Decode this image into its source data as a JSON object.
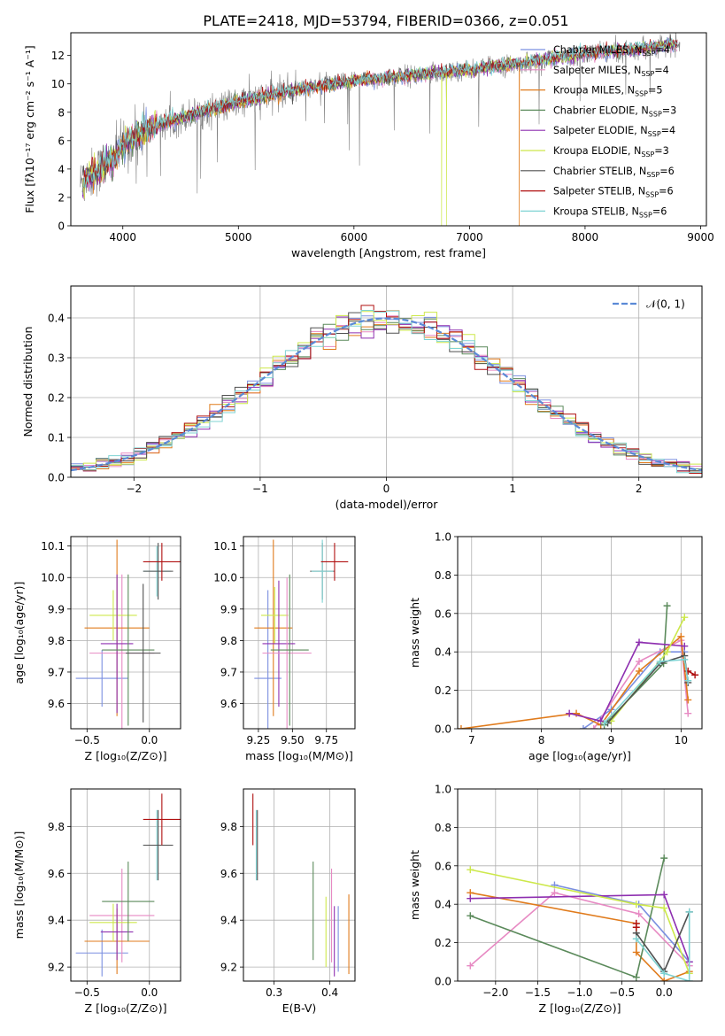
{
  "title": "PLATE=2418, MJD=53794, FIBERID=0366, z=0.051",
  "colors": {
    "chabrier_miles": "#7b8fe0",
    "salpeter_miles": "#e78ac3",
    "kroupa_miles": "#e07b1c",
    "chabrier_elodie": "#5b8a5b",
    "salpeter_elodie": "#8e2fb0",
    "kroupa_elodie": "#cde84b",
    "chabrier_stelib": "#505050",
    "salpeter_stelib": "#b01010",
    "kroupa_stelib": "#7fd3d3",
    "data": "#808080",
    "normal": "#5b8ad6"
  },
  "chart_data": [
    {
      "id": "spectrum",
      "type": "line",
      "xlabel": "wavelength [Angstrom, rest frame]",
      "ylabel": "Flux [fλ10⁻¹⁷ erg cm⁻² s⁻¹ A⁻¹]",
      "xlim": [
        3550,
        9050
      ],
      "ylim": [
        0,
        13.6
      ],
      "xticks": [
        4000,
        5000,
        6000,
        7000,
        8000,
        9000
      ],
      "yticks": [
        0,
        2,
        4,
        6,
        8,
        10,
        12
      ],
      "legend_loc": "top-right",
      "legend": [
        {
          "name": "Chabrier MILES, N_SSP=4",
          "main": "Chabrier MILES, N",
          "sub": "SSP",
          "tail": "=4",
          "color": "#7b8fe0"
        },
        {
          "name": "Salpeter MILES, N_SSP=4",
          "main": "Salpeter MILES, N",
          "sub": "SSP",
          "tail": "=4",
          "color": "#e78ac3"
        },
        {
          "name": "Kroupa MILES, N_SSP=5",
          "main": "Kroupa MILES, N",
          "sub": "SSP",
          "tail": "=5",
          "color": "#e07b1c"
        },
        {
          "name": "Chabrier ELODIE, N_SSP=3",
          "main": "Chabrier ELODIE, N",
          "sub": "SSP",
          "tail": "=3",
          "color": "#5b8a5b"
        },
        {
          "name": "Salpeter ELODIE, N_SSP=4",
          "main": "Salpeter ELODIE, N",
          "sub": "SSP",
          "tail": "=4",
          "color": "#8e2fb0"
        },
        {
          "name": "Kroupa ELODIE, N_SSP=3",
          "main": "Kroupa ELODIE, N",
          "sub": "SSP",
          "tail": "=3",
          "color": "#cde84b"
        },
        {
          "name": "Chabrier STELIB, N_SSP=6",
          "main": "Chabrier STELIB, N",
          "sub": "SSP",
          "tail": "=6",
          "color": "#505050"
        },
        {
          "name": "Salpeter STELIB, N_SSP=6",
          "main": "Salpeter STELIB, N",
          "sub": "SSP",
          "tail": "=6",
          "color": "#b01010"
        },
        {
          "name": "Kroupa STELIB, N_SSP=6",
          "main": "Kroupa STELIB, N",
          "sub": "SSP",
          "tail": "=6",
          "color": "#7fd3d3"
        }
      ],
      "continuum": {
        "x": [
          3650,
          3700,
          3800,
          3900,
          4000,
          4200,
          4500,
          5000,
          5500,
          6000,
          6500,
          7000,
          7500,
          8000,
          8500,
          8800
        ],
        "y": [
          3.0,
          3.5,
          4.0,
          4.6,
          5.6,
          6.8,
          7.6,
          8.7,
          9.6,
          10.2,
          10.6,
          11.0,
          11.5,
          12.1,
          12.5,
          12.8
        ]
      },
      "dropouts": [
        {
          "series": "kroupa_miles",
          "x": 7430
        },
        {
          "series": "kroupa_elodie",
          "x": 6760
        },
        {
          "series": "kroupa_elodie",
          "x": 6800
        }
      ],
      "model_range": [
        3650,
        8800
      ]
    },
    {
      "id": "residuals",
      "type": "step",
      "xlabel": "(data-model)/error",
      "ylabel": "Normed distribution",
      "xlim": [
        -2.5,
        2.5
      ],
      "ylim": [
        0,
        0.48
      ],
      "xticks": [
        -2,
        -1,
        0,
        1,
        2
      ],
      "xtick_labels": [
        "−2",
        "−1",
        "0",
        "1",
        "2"
      ],
      "yticks": [
        0.0,
        0.1,
        0.2,
        0.3,
        0.4
      ],
      "ytick_labels": [
        "0.0",
        "0.1",
        "0.2",
        "0.3",
        "0.4"
      ],
      "grid": true,
      "legend_loc": "top-right",
      "normal_label": "𝒩(0, 1)",
      "bin_width": 0.1
    },
    {
      "id": "age_vs_Z",
      "type": "errorbar",
      "xlabel": "Z [log₁₀(Z/Z⊙)]",
      "ylabel": "age  [log₁₀(age/yr)]",
      "xlim": [
        -0.63,
        0.25
      ],
      "ylim": [
        9.52,
        10.13
      ],
      "xticks": [
        -0.5,
        0.0
      ],
      "xtick_labels": [
        "−0.5",
        "0.0"
      ],
      "yticks": [
        9.6,
        9.7,
        9.8,
        9.9,
        10.0,
        10.1
      ],
      "ytick_labels": [
        "9.6",
        "9.7",
        "9.8",
        "9.9",
        "10.0",
        "10.1"
      ],
      "points": [
        {
          "s": "chabrier_miles",
          "x": -0.38,
          "xe": 0.21,
          "y": 9.68,
          "ye": 0.09
        },
        {
          "s": "salpeter_miles",
          "x": -0.22,
          "xe": 0.26,
          "y": 9.76,
          "ye": 0.25
        },
        {
          "s": "kroupa_miles",
          "x": -0.26,
          "xe": 0.26,
          "y": 9.84,
          "ye": 0.28
        },
        {
          "s": "kroupa_elodie",
          "x": -0.29,
          "xe": 0.19,
          "y": 9.88,
          "ye": 0.08
        },
        {
          "s": "salpeter_elodie",
          "x": -0.26,
          "xe": 0.13,
          "y": 9.79,
          "ye": 0.22
        },
        {
          "s": "chabrier_elodie",
          "x": -0.17,
          "xe": 0.21,
          "y": 9.77,
          "ye": 0.24
        },
        {
          "s": "chabrier_stelib",
          "x": -0.05,
          "xe": 0.14,
          "y": 9.76,
          "ye": 0.22
        },
        {
          "s": "kroupa_stelib",
          "x": 0.06,
          "xe": 0.11,
          "y": 10.02,
          "ye": 0.08
        },
        {
          "s": "chabrier_stelib",
          "x": 0.07,
          "xe": 0.12,
          "y": 10.02,
          "ye": 0.09
        },
        {
          "s": "salpeter_stelib",
          "x": 0.1,
          "xe": 0.15,
          "y": 10.05,
          "ye": 0.06
        }
      ]
    },
    {
      "id": "age_vs_mass",
      "type": "errorbar",
      "xlabel": "mass [log₁₀(M/M⊙)]",
      "xlim": [
        9.14,
        9.96
      ],
      "ylim": [
        9.52,
        10.13
      ],
      "xticks": [
        9.25,
        9.5,
        9.75
      ],
      "xtick_labels": [
        "9.25",
        "9.50",
        "9.75"
      ],
      "yticks": [
        9.6,
        9.7,
        9.8,
        9.9,
        10.0,
        10.1
      ],
      "ytick_labels": [
        "9.6",
        "9.7",
        "9.8",
        "9.9",
        "10.0",
        "10.1"
      ],
      "points": [
        {
          "s": "chabrier_miles",
          "x": 9.32,
          "xe": 0.1,
          "y": 9.68,
          "ye": 0.28
        },
        {
          "s": "kroupa_miles",
          "x": 9.36,
          "xe": 0.14,
          "y": 9.84,
          "ye": 0.28
        },
        {
          "s": "kroupa_elodie",
          "x": 9.37,
          "xe": 0.1,
          "y": 9.88,
          "ye": 0.09
        },
        {
          "s": "salpeter_elodie",
          "x": 9.4,
          "xe": 0.12,
          "y": 9.79,
          "ye": 0.2
        },
        {
          "s": "salpeter_miles",
          "x": 9.46,
          "xe": 0.18,
          "y": 9.76,
          "ye": 0.24
        },
        {
          "s": "chabrier_elodie",
          "x": 9.48,
          "xe": 0.14,
          "y": 9.77,
          "ye": 0.24
        },
        {
          "s": "chabrier_stelib",
          "x": 9.72,
          "xe": 0.09,
          "y": 10.02,
          "ye": 0.09
        },
        {
          "s": "kroupa_stelib",
          "x": 9.72,
          "xe": 0.08,
          "y": 10.02,
          "ye": 0.1
        },
        {
          "s": "salpeter_stelib",
          "x": 9.81,
          "xe": 0.1,
          "y": 10.05,
          "ye": 0.06
        }
      ]
    },
    {
      "id": "weight_vs_age",
      "type": "line",
      "xlabel": "age  [log₁₀(age/yr)]",
      "ylabel": "mass weight",
      "xlim": [
        6.8,
        10.3
      ],
      "ylim": [
        0.0,
        1.0
      ],
      "xticks": [
        7,
        8,
        9,
        10
      ],
      "xtick_labels": [
        "7",
        "8",
        "9",
        "10"
      ],
      "yticks": [
        0.0,
        0.2,
        0.4,
        0.6,
        0.8,
        1.0
      ],
      "ytick_labels": [
        "0.0",
        "0.2",
        "0.4",
        "0.6",
        "0.8",
        "1.0"
      ],
      "grid": true,
      "series": [
        {
          "s": "chabrier_miles",
          "x": [
            8.6,
            9.0,
            9.7,
            10.05
          ],
          "y": [
            0.0,
            0.1,
            0.4,
            0.4
          ]
        },
        {
          "s": "salpeter_miles",
          "x": [
            8.75,
            9.4,
            10.0,
            10.1
          ],
          "y": [
            0.0,
            0.35,
            0.46,
            0.08
          ]
        },
        {
          "s": "kroupa_miles",
          "x": [
            6.85,
            8.5,
            8.85,
            9.4,
            10.0,
            10.1
          ],
          "y": [
            0.0,
            0.08,
            0.02,
            0.3,
            0.48,
            0.15
          ]
        },
        {
          "s": "chabrier_elodie",
          "x": [
            8.9,
            9.75,
            9.8
          ],
          "y": [
            0.02,
            0.34,
            0.64
          ]
        },
        {
          "s": "salpeter_elodie",
          "x": [
            8.4,
            8.85,
            9.4,
            10.05
          ],
          "y": [
            0.08,
            0.04,
            0.45,
            0.43
          ]
        },
        {
          "s": "kroupa_elodie",
          "x": [
            9.0,
            9.8,
            10.05
          ],
          "y": [
            0.04,
            0.4,
            0.58
          ]
        },
        {
          "s": "chabrier_stelib",
          "x": [
            8.95,
            9.7,
            10.05,
            10.1
          ],
          "y": [
            0.03,
            0.34,
            0.38,
            0.24
          ]
        },
        {
          "s": "salpeter_stelib",
          "x": [
            10.1,
            10.2
          ],
          "y": [
            0.3,
            0.28
          ]
        },
        {
          "s": "kroupa_stelib",
          "x": [
            8.9,
            9.7,
            10.05,
            10.1
          ],
          "y": [
            0.03,
            0.35,
            0.36,
            0.25
          ]
        }
      ]
    },
    {
      "id": "mass_vs_Z",
      "type": "errorbar",
      "xlabel": "Z [log₁₀(Z/Z⊙)]",
      "ylabel": "mass [log₁₀(M/M⊙)]",
      "xlim": [
        -0.63,
        0.25
      ],
      "ylim": [
        9.14,
        9.96
      ],
      "xticks": [
        -0.5,
        0.0
      ],
      "xtick_labels": [
        "−0.5",
        "0.0"
      ],
      "yticks": [
        9.2,
        9.4,
        9.6,
        9.8
      ],
      "ytick_labels": [
        "9.2",
        "9.4",
        "9.6",
        "9.8"
      ],
      "points": [
        {
          "s": "chabrier_miles",
          "x": -0.38,
          "xe": 0.21,
          "y": 9.26,
          "ye": 0.1
        },
        {
          "s": "salpeter_miles",
          "x": -0.22,
          "xe": 0.26,
          "y": 9.42,
          "ye": 0.2
        },
        {
          "s": "kroupa_miles",
          "x": -0.26,
          "xe": 0.26,
          "y": 9.31,
          "ye": 0.14
        },
        {
          "s": "kroupa_elodie",
          "x": -0.29,
          "xe": 0.19,
          "y": 9.39,
          "ye": 0.08
        },
        {
          "s": "salpeter_elodie",
          "x": -0.26,
          "xe": 0.13,
          "y": 9.35,
          "ye": 0.12
        },
        {
          "s": "chabrier_elodie",
          "x": -0.17,
          "xe": 0.21,
          "y": 9.48,
          "ye": 0.17
        },
        {
          "s": "kroupa_stelib",
          "x": 0.06,
          "xe": 0.11,
          "y": 9.72,
          "ye": 0.15
        },
        {
          "s": "chabrier_stelib",
          "x": 0.07,
          "xe": 0.12,
          "y": 9.72,
          "ye": 0.15
        },
        {
          "s": "salpeter_stelib",
          "x": 0.1,
          "xe": 0.15,
          "y": 9.83,
          "ye": 0.11
        }
      ]
    },
    {
      "id": "mass_vs_ebv",
      "type": "errorbar",
      "xlabel": "E(B-V)",
      "xlim": [
        0.245,
        0.445
      ],
      "ylim": [
        9.14,
        9.96
      ],
      "xticks": [
        0.3,
        0.4
      ],
      "xtick_labels": [
        "0.3",
        "0.4"
      ],
      "yticks": [
        9.2,
        9.4,
        9.6,
        9.8
      ],
      "ytick_labels": [
        "9.2",
        "9.4",
        "9.6",
        "9.8"
      ],
      "points": [
        {
          "s": "salpeter_stelib",
          "x": 0.262,
          "xe": 0.0,
          "y": 9.83,
          "ye": 0.11
        },
        {
          "s": "kroupa_stelib",
          "x": 0.268,
          "xe": 0.0,
          "y": 9.72,
          "ye": 0.15
        },
        {
          "s": "chabrier_stelib",
          "x": 0.27,
          "xe": 0.0,
          "y": 9.72,
          "ye": 0.15
        },
        {
          "s": "chabrier_elodie",
          "x": 0.37,
          "xe": 0.0,
          "y": 9.44,
          "ye": 0.21
        },
        {
          "s": "kroupa_elodie",
          "x": 0.393,
          "xe": 0.0,
          "y": 9.35,
          "ye": 0.15
        },
        {
          "s": "salpeter_miles",
          "x": 0.403,
          "xe": 0.0,
          "y": 9.42,
          "ye": 0.2
        },
        {
          "s": "salpeter_elodie",
          "x": 0.408,
          "xe": 0.0,
          "y": 9.31,
          "ye": 0.15
        },
        {
          "s": "chabrier_miles",
          "x": 0.415,
          "xe": 0.0,
          "y": 9.32,
          "ye": 0.14
        },
        {
          "s": "kroupa_miles",
          "x": 0.434,
          "xe": 0.0,
          "y": 9.34,
          "ye": 0.17
        }
      ]
    },
    {
      "id": "weight_vs_Z",
      "type": "line",
      "xlabel": "Z [log₁₀(Z/Z⊙)]",
      "ylabel": "mass weight",
      "xlim": [
        -2.45,
        0.45
      ],
      "ylim": [
        0.0,
        1.0
      ],
      "xticks": [
        -2.0,
        -1.5,
        -1.0,
        -0.5,
        0.0
      ],
      "xtick_labels": [
        "−2.0",
        "−1.5",
        "−1.0",
        "−0.5",
        "0.0"
      ],
      "yticks": [
        0.0,
        0.2,
        0.4,
        0.6,
        0.8,
        1.0
      ],
      "ytick_labels": [
        "0.0",
        "0.2",
        "0.4",
        "0.6",
        "0.8",
        "1.0"
      ],
      "grid": true,
      "series": [
        {
          "s": "chabrier_miles",
          "x": [
            -1.3,
            -0.3,
            0.3
          ],
          "y": [
            0.5,
            0.4,
            0.1
          ]
        },
        {
          "s": "salpeter_miles",
          "x": [
            -2.3,
            -1.3,
            -0.3,
            0.3
          ],
          "y": [
            0.08,
            0.46,
            0.35,
            0.08
          ]
        },
        {
          "s": "kroupa_miles",
          "x": [
            -2.3,
            -0.33,
            -0.33,
            0.0,
            0.3
          ],
          "y": [
            0.46,
            0.3,
            0.15,
            0.0,
            0.05
          ]
        },
        {
          "s": "chabrier_elodie",
          "x": [
            -2.3,
            -0.33,
            0.0
          ],
          "y": [
            0.34,
            0.02,
            0.64
          ]
        },
        {
          "s": "salpeter_elodie",
          "x": [
            -2.3,
            0.0,
            0.3
          ],
          "y": [
            0.43,
            0.45,
            0.1
          ]
        },
        {
          "s": "kroupa_elodie",
          "x": [
            -2.3,
            -0.33,
            0.0,
            0.3
          ],
          "y": [
            0.58,
            0.4,
            0.38,
            0.04
          ]
        },
        {
          "s": "chabrier_stelib",
          "x": [
            -0.33,
            0.0,
            0.3
          ],
          "y": [
            0.25,
            0.05,
            0.36
          ]
        },
        {
          "s": "salpeter_stelib",
          "x": [
            -0.33,
            -0.33
          ],
          "y": [
            0.28,
            0.3
          ]
        },
        {
          "s": "kroupa_stelib",
          "x": [
            -0.33,
            0.0,
            0.3,
            0.3
          ],
          "y": [
            0.22,
            0.04,
            0.0,
            0.36
          ]
        }
      ]
    }
  ]
}
